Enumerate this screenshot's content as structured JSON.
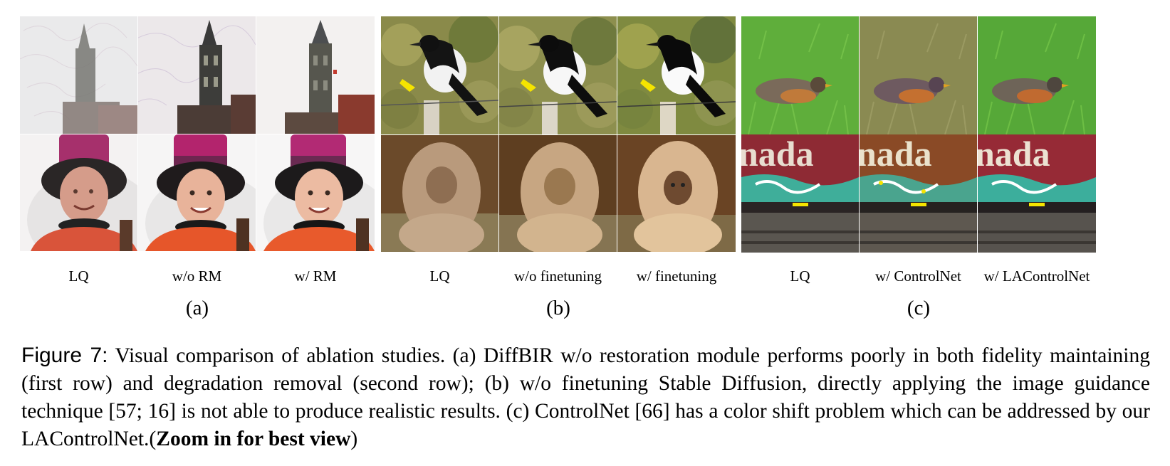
{
  "panels": [
    {
      "id": "a",
      "label": "(a)",
      "columns": [
        "LQ",
        "w/o RM",
        "w/ RM"
      ]
    },
    {
      "id": "b",
      "label": "(b)",
      "columns": [
        "LQ",
        "w/o finetuning",
        "w/ finetuning"
      ]
    },
    {
      "id": "c",
      "label": "(c)",
      "columns": [
        "LQ",
        "w/ ControlNet",
        "w/ LAControlNet"
      ]
    }
  ],
  "caption": {
    "figure_label": "Figure 7:",
    "text": " Visual comparison of ablation studies. (a) DiffBIR w/o restoration module performs poorly in both fidelity maintaining (first row) and degradation removal (second row); (b) w/o finetuning Stable Diffusion, directly applying the image guidance technique [57; 16] is not able to produce realistic results. (c) ControlNet [66] has a color shift problem which can be addressed by our LAControlNet.(",
    "emphasis": "Zoom in for best view",
    "end": ")"
  },
  "image_text": {
    "train_lettering": "nada"
  },
  "colors": {
    "arrow_yellow": "#f5e400",
    "grass_green": "#5fae3b",
    "train_red": "#9b2a35",
    "hat_magenta": "#b3246d",
    "shirt_orange": "#e6562a"
  }
}
